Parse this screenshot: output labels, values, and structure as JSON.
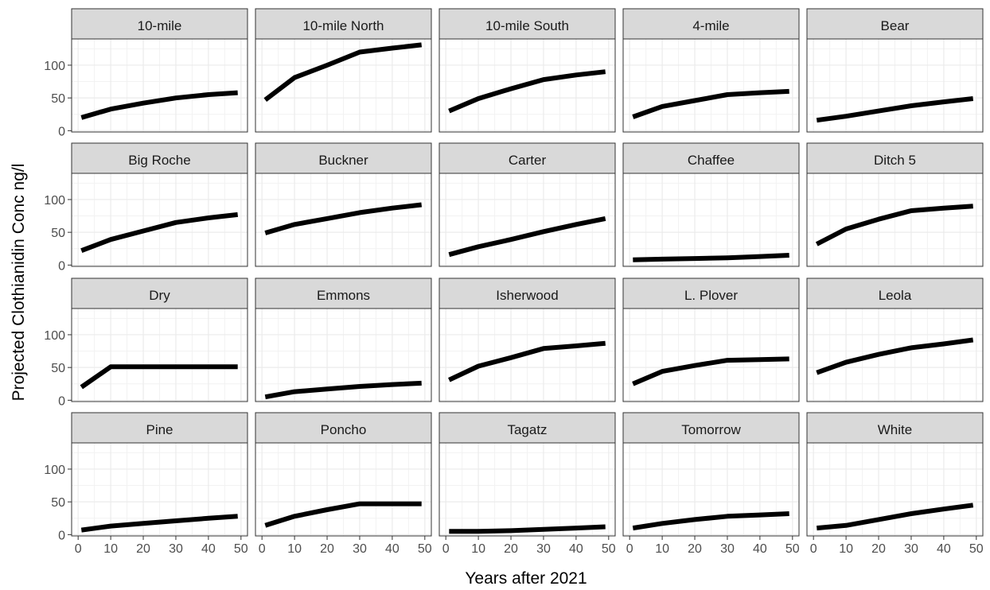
{
  "chart_data": {
    "type": "line",
    "layout": "facet-grid",
    "xlabel": "Years after 2021",
    "ylabel": "Projected Clothianidin Conc ng/l",
    "xlim": [
      -2,
      52
    ],
    "ylim": [
      -2,
      140
    ],
    "x_ticks": [
      0,
      10,
      20,
      30,
      40,
      50
    ],
    "y_ticks": [
      0,
      50,
      100
    ],
    "grid": true,
    "x": [
      1,
      10,
      20,
      30,
      40,
      49
    ],
    "panels": [
      {
        "name": "10-mile",
        "values": [
          20,
          33,
          42,
          50,
          55,
          58
        ]
      },
      {
        "name": "10-mile North",
        "values": [
          47,
          81,
          100,
          120,
          126,
          131
        ]
      },
      {
        "name": "10-mile South",
        "values": [
          30,
          49,
          64,
          78,
          85,
          90
        ]
      },
      {
        "name": "4-mile",
        "values": [
          21,
          37,
          46,
          55,
          58,
          60
        ]
      },
      {
        "name": "Bear",
        "values": [
          16,
          22,
          30,
          38,
          44,
          49
        ]
      },
      {
        "name": "Big Roche",
        "values": [
          22,
          39,
          52,
          65,
          72,
          77
        ]
      },
      {
        "name": "Buckner",
        "values": [
          49,
          62,
          71,
          80,
          87,
          92
        ]
      },
      {
        "name": "Carter",
        "values": [
          16,
          28,
          39,
          51,
          62,
          71
        ]
      },
      {
        "name": "Chaffee",
        "values": [
          8,
          9,
          10,
          11,
          13,
          15
        ]
      },
      {
        "name": "Ditch 5",
        "values": [
          32,
          55,
          70,
          83,
          87,
          90
        ]
      },
      {
        "name": "Dry",
        "values": [
          20,
          51,
          51,
          51,
          51,
          51
        ]
      },
      {
        "name": "Emmons",
        "values": [
          5,
          13,
          17,
          21,
          24,
          26
        ]
      },
      {
        "name": "Isherwood",
        "values": [
          31,
          52,
          65,
          79,
          83,
          87
        ]
      },
      {
        "name": "L. Plover",
        "values": [
          25,
          44,
          53,
          61,
          62,
          63
        ]
      },
      {
        "name": "Leola",
        "values": [
          42,
          58,
          70,
          80,
          86,
          92
        ]
      },
      {
        "name": "Pine",
        "values": [
          7,
          13,
          17,
          21,
          25,
          28
        ]
      },
      {
        "name": "Poncho",
        "values": [
          14,
          28,
          38,
          47,
          47,
          47
        ]
      },
      {
        "name": "Tagatz",
        "values": [
          5,
          5,
          6,
          8,
          10,
          12
        ]
      },
      {
        "name": "Tomorrow",
        "values": [
          10,
          17,
          23,
          28,
          30,
          32
        ]
      },
      {
        "name": "White",
        "values": [
          10,
          14,
          23,
          32,
          39,
          45
        ]
      }
    ]
  }
}
